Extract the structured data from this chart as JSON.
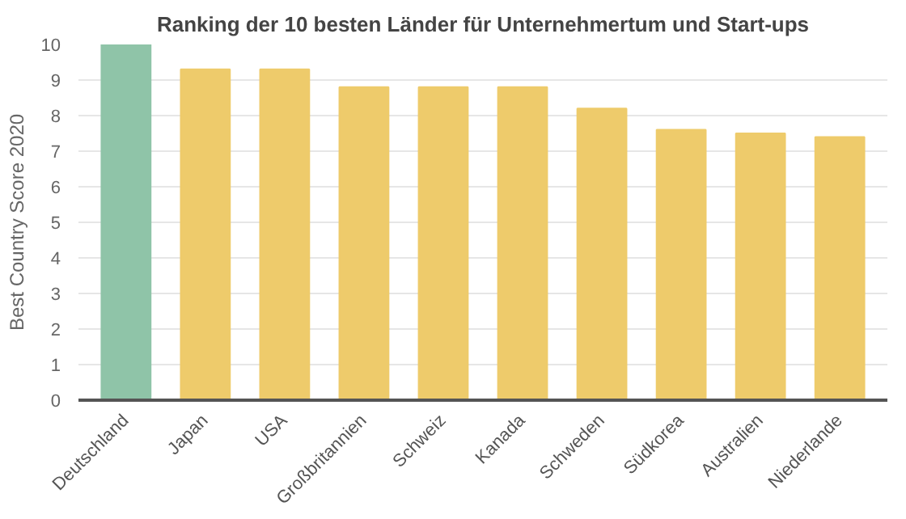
{
  "chart_data": {
    "type": "bar",
    "title": "Ranking der 10 besten Länder für Unternehmertum und Start-ups",
    "ylabel": "Best Country Score 2020",
    "categories": [
      "Deutschland",
      "Japan",
      "USA",
      "Großbritannien",
      "Schweiz",
      "Kanada",
      "Schweden",
      "Südkorea",
      "Australien",
      "Niederlande"
    ],
    "values": [
      10,
      9.3,
      9.3,
      8.8,
      8.8,
      8.8,
      8.2,
      7.6,
      7.5,
      7.4
    ],
    "colors": [
      "#8fc4a8",
      "#eecb6b",
      "#eecb6b",
      "#eecb6b",
      "#eecb6b",
      "#eecb6b",
      "#eecb6b",
      "#eecb6b",
      "#eecb6b",
      "#eecb6b"
    ],
    "ylim": [
      0,
      10
    ],
    "yticks": [
      0,
      1,
      2,
      3,
      4,
      5,
      6,
      7,
      8,
      9,
      10
    ],
    "grid": "y"
  }
}
